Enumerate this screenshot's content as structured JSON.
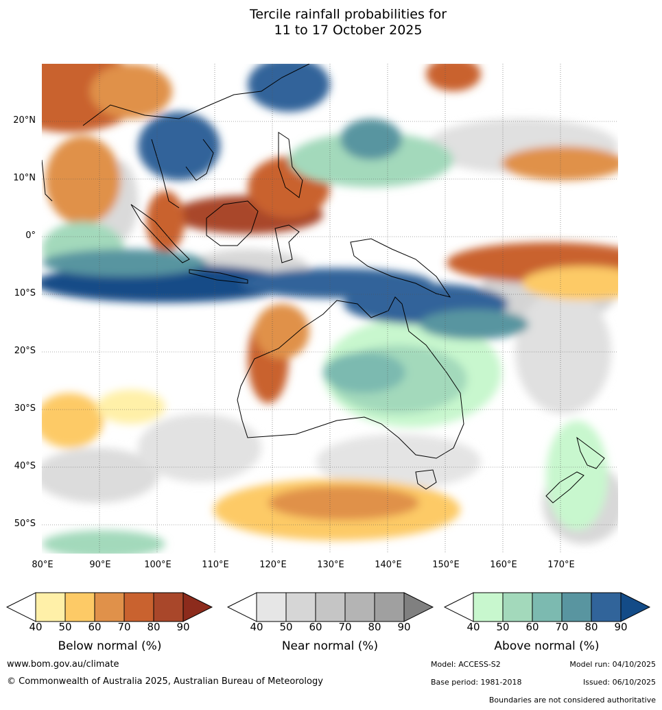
{
  "title": {
    "line1": "Tercile rainfall probabilities for",
    "line2": "11 to 17 October 2025"
  },
  "map": {
    "lat_labels": [
      "20°N",
      "10°N",
      "0°",
      "10°S",
      "20°S",
      "30°S",
      "40°S",
      "50°S"
    ],
    "lon_labels": [
      "80°E",
      "90°E",
      "100°E",
      "110°E",
      "120°E",
      "130°E",
      "140°E",
      "150°E",
      "160°E",
      "170°E"
    ],
    "extent": {
      "lon": [
        80,
        180
      ],
      "lat": [
        -55,
        30
      ]
    }
  },
  "legends": {
    "below": {
      "label": "Below normal (%)",
      "ticks": [
        "40",
        "50",
        "60",
        "70",
        "80",
        "90"
      ],
      "colors": [
        "#fff0a8",
        "#fdca66",
        "#e0914a",
        "#c9622f",
        "#a9472a",
        "#8c2b1c"
      ]
    },
    "near": {
      "label": "Near normal (%)",
      "ticks": [
        "40",
        "50",
        "60",
        "70",
        "80",
        "90"
      ],
      "colors": [
        "#e6e6e6",
        "#d6d6d6",
        "#c5c5c5",
        "#b4b4b4",
        "#a0a0a0",
        "#808080"
      ]
    },
    "above": {
      "label": "Above normal (%)",
      "ticks": [
        "40",
        "50",
        "60",
        "70",
        "80",
        "90"
      ],
      "colors": [
        "#c8f7ce",
        "#a3d9bb",
        "#7cbab0",
        "#5995a0",
        "#31649a",
        "#134b87"
      ]
    }
  },
  "footer": {
    "website": "www.bom.gov.au/climate",
    "copyright": "© Commonwealth of Australia 2025, Australian Bureau of Meteorology",
    "model": "Model: ACCESS-S2",
    "model_run": "Model run: 04/10/2025",
    "base_period": "Base period: 1981-2018",
    "issued": "Issued: 06/10/2025",
    "disclaimer": "Boundaries are not considered authoritative"
  }
}
